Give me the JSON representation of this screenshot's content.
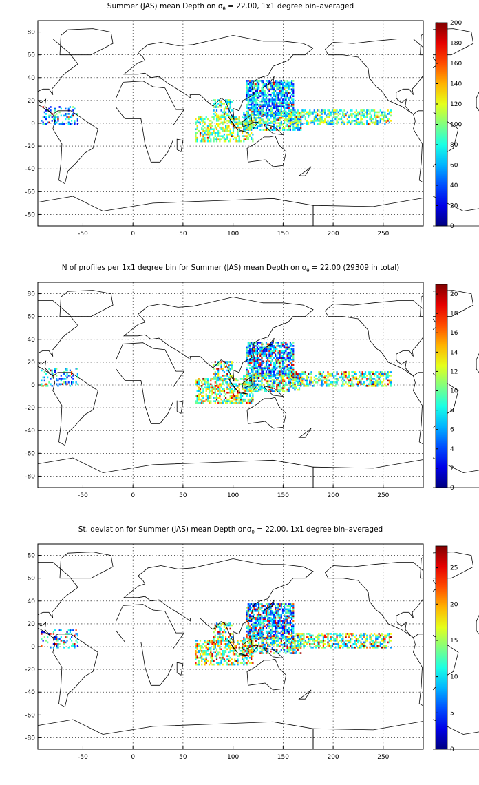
{
  "x_ticks": [
    "-50",
    "0",
    "50",
    "100",
    "150",
    "200",
    "250"
  ],
  "y_ticks": [
    "80",
    "60",
    "40",
    "20",
    "0",
    "-20",
    "-40",
    "-60",
    "-80"
  ],
  "panels": [
    {
      "title_pre": "Summer (JAS) mean Depth on ",
      "sigma": "σ",
      "sub": "θ",
      "title_post": " = 22.00, 1x1 degree bin–averaged",
      "colorbar_ticks": [
        "200",
        "180",
        "160",
        "140",
        "120",
        "100",
        "80",
        "60",
        "40",
        "20",
        "0"
      ],
      "hot_fraction": 0.12
    },
    {
      "title_pre": "N of profiles per 1x1 degree bin for Summer (JAS) mean Depth on ",
      "sigma": "σ",
      "sub": "θ",
      "title_post": " = 22.00 (29309 in total)",
      "colorbar_ticks": [
        "20",
        "18",
        "16",
        "14",
        "12",
        "10",
        "8",
        "6",
        "4",
        "2",
        "0"
      ],
      "hot_fraction": 0.42
    },
    {
      "title_pre": "St. deviation for Summer (JAS) mean Depth on",
      "sigma": "σ",
      "sub": "θ",
      "title_post": " = 22.00, 1x1 degree bin–averaged",
      "colorbar_ticks": [
        "25",
        "20",
        "15",
        "10",
        "5",
        "0"
      ],
      "hot_fraction": 0.5
    }
  ],
  "chart_data": [
    {
      "type": "heatmap",
      "title": "Summer (JAS) mean Depth on σθ = 22.00, 1x1 degree bin–averaged",
      "xlim": [
        -95,
        290
      ],
      "ylim": [
        -90,
        90
      ],
      "grid": true,
      "colormap": "jet",
      "colorbar_range": [
        0,
        200
      ],
      "regions": [
        {
          "name": "west-pacific",
          "lon": [
            115,
            165
          ],
          "lat": [
            0,
            40
          ],
          "value": 40
        },
        {
          "name": "east-pacific",
          "lon": [
            165,
            255
          ],
          "lat": [
            0,
            12
          ],
          "value": 70
        },
        {
          "name": "indian-ocean",
          "lon": [
            60,
            120
          ],
          "lat": [
            -15,
            20
          ],
          "value": 70
        },
        {
          "name": "atlantic",
          "lon": [
            -95,
            -55
          ],
          "lat": [
            0,
            15
          ],
          "value": 40
        }
      ]
    },
    {
      "type": "heatmap",
      "title": "N of profiles per 1x1 degree bin for Summer (JAS) mean Depth on σθ = 22.00 (29309 in total)",
      "xlim": [
        -95,
        290
      ],
      "ylim": [
        -90,
        90
      ],
      "grid": true,
      "colormap": "jet",
      "colorbar_range": [
        0,
        21
      ],
      "regions": [
        {
          "name": "west-pacific",
          "lon": [
            115,
            165
          ],
          "lat": [
            0,
            40
          ],
          "value": 12
        },
        {
          "name": "east-pacific",
          "lon": [
            165,
            255
          ],
          "lat": [
            0,
            12
          ],
          "value": 6
        },
        {
          "name": "indian-ocean",
          "lon": [
            60,
            120
          ],
          "lat": [
            -15,
            20
          ],
          "value": 8
        },
        {
          "name": "atlantic",
          "lon": [
            -95,
            -55
          ],
          "lat": [
            0,
            15
          ],
          "value": 4
        }
      ]
    },
    {
      "type": "heatmap",
      "title": "St. deviation for Summer (JAS) mean Depth on σθ = 22.00, 1x1 degree bin–averaged",
      "xlim": [
        -95,
        290
      ],
      "ylim": [
        -90,
        90
      ],
      "grid": true,
      "colormap": "jet",
      "colorbar_range": [
        0,
        28
      ],
      "regions": [
        {
          "name": "west-pacific",
          "lon": [
            115,
            165
          ],
          "lat": [
            0,
            40
          ],
          "value": 14
        },
        {
          "name": "east-pacific",
          "lon": [
            165,
            255
          ],
          "lat": [
            0,
            12
          ],
          "value": 10
        },
        {
          "name": "indian-ocean",
          "lon": [
            60,
            120
          ],
          "lat": [
            -15,
            20
          ],
          "value": 12
        },
        {
          "name": "atlantic",
          "lon": [
            -95,
            -55
          ],
          "lat": [
            0,
            15
          ],
          "value": 6
        }
      ]
    }
  ]
}
